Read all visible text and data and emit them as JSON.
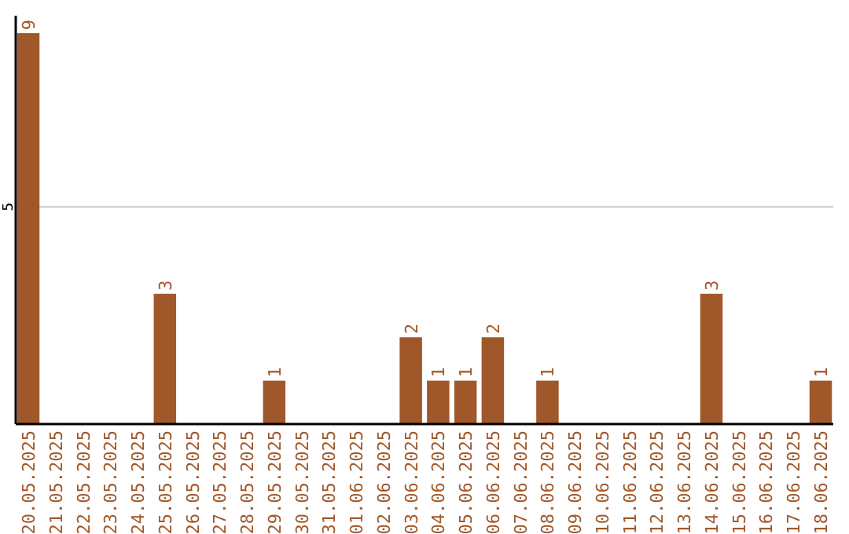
{
  "chart_data": {
    "type": "bar",
    "categories": [
      "20.05.2025",
      "21.05.2025",
      "22.05.2025",
      "23.05.2025",
      "24.05.2025",
      "25.05.2025",
      "26.05.2025",
      "27.05.2025",
      "28.05.2025",
      "29.05.2025",
      "30.05.2025",
      "31.05.2025",
      "01.06.2025",
      "02.06.2025",
      "03.06.2025",
      "04.06.2025",
      "05.06.2025",
      "06.06.2025",
      "07.06.2025",
      "08.06.2025",
      "09.06.2025",
      "10.06.2025",
      "11.06.2025",
      "12.06.2025",
      "13.06.2025",
      "14.06.2025",
      "15.06.2025",
      "16.06.2025",
      "17.06.2025",
      "18.06.2025"
    ],
    "values": [
      9,
      0,
      0,
      0,
      0,
      3,
      0,
      0,
      0,
      1,
      0,
      0,
      0,
      0,
      2,
      1,
      1,
      2,
      0,
      1,
      0,
      0,
      0,
      0,
      0,
      3,
      0,
      0,
      0,
      1
    ],
    "value_labels": [
      "9",
      null,
      null,
      null,
      null,
      "3",
      null,
      null,
      null,
      "1",
      null,
      null,
      null,
      null,
      "2",
      "1",
      "1",
      "2",
      null,
      "1",
      null,
      null,
      null,
      null,
      null,
      "3",
      null,
      null,
      null,
      "1"
    ],
    "color": "#a0582a",
    "ylim": [
      0,
      9.4
    ],
    "yticks": [
      5
    ],
    "grid": "y"
  }
}
